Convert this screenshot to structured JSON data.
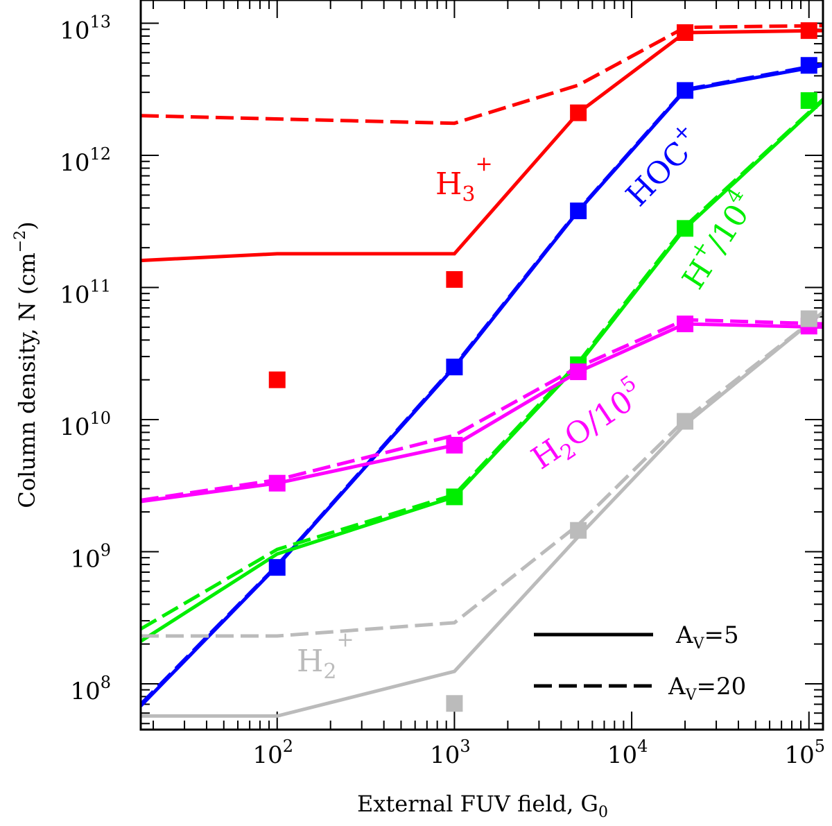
{
  "chart_data": {
    "type": "line",
    "xscale": "log",
    "yscale": "log",
    "xlabel": "External FUV field, G",
    "xlabel_sub": "0",
    "ylabel": "Column density, N (cm",
    "ylabel_sup": "−2",
    "ylabel_end": ")",
    "xlim": [
      17,
      120000
    ],
    "ylim": [
      45000000,
      15000000000000
    ],
    "x_ticks": [
      {
        "value": 100,
        "base": "10",
        "exp": "2"
      },
      {
        "value": 1000,
        "base": "10",
        "exp": "3"
      },
      {
        "value": 10000,
        "base": "10",
        "exp": "4"
      },
      {
        "value": 100000,
        "base": "10",
        "exp": "5"
      }
    ],
    "y_ticks": [
      {
        "value": 100000000,
        "base": "10",
        "exp": "8"
      },
      {
        "value": 1000000000,
        "base": "10",
        "exp": "9"
      },
      {
        "value": 10000000000,
        "base": "10",
        "exp": "10"
      },
      {
        "value": 100000000000,
        "base": "10",
        "exp": "11"
      },
      {
        "value": 1000000000000,
        "base": "10",
        "exp": "12"
      },
      {
        "value": 10000000000000,
        "base": "10",
        "exp": "13"
      }
    ],
    "series": [
      {
        "key": "h3p",
        "color": "#ff0000",
        "solid": {
          "x": [
            17,
            100,
            1000,
            5000,
            20000,
            120000
          ],
          "y": [
            160000000000,
            180000000000,
            180000000000,
            2100000000000,
            8500000000000,
            8800000000000
          ]
        },
        "dashed": {
          "x": [
            17,
            1000,
            5000,
            20000,
            120000
          ],
          "y": [
            2000000000000,
            1750000000000,
            3400000000000,
            9300000000000,
            9600000000000
          ]
        },
        "markers": {
          "x": [
            100,
            1000,
            5000,
            20000,
            100000
          ],
          "y": [
            20000000000,
            115000000000,
            2100000000000,
            8500000000000,
            8800000000000
          ]
        }
      },
      {
        "key": "hocp",
        "color": "#0000ff",
        "solid": {
          "x": [
            17,
            100,
            1000,
            5000,
            20000,
            120000
          ],
          "y": [
            68000000,
            780000000,
            25000000000,
            380000000000,
            3100000000000,
            4800000000000
          ]
        },
        "dashed": {
          "x": [
            17,
            100,
            1000,
            5000,
            20000,
            120000
          ],
          "y": [
            70000000,
            790000000,
            25500000000,
            385000000000,
            3150000000000,
            4900000000000
          ]
        },
        "markers": {
          "x": [
            100,
            1000,
            5000,
            20000,
            100000
          ],
          "y": [
            760000000,
            25000000000,
            380000000000,
            3100000000000,
            4800000000000
          ]
        }
      },
      {
        "key": "hp",
        "color": "#00ee00",
        "solid": {
          "x": [
            17,
            100,
            1000,
            5000,
            20000,
            120000
          ],
          "y": [
            210000000,
            960000000,
            2600000000,
            26000000000,
            280000000000,
            2600000000000
          ]
        },
        "dashed": {
          "x": [
            17,
            100,
            1000,
            5000,
            20000,
            120000
          ],
          "y": [
            260000000,
            1040000000,
            2700000000,
            27000000000,
            290000000000,
            2650000000000
          ]
        },
        "markers": {
          "x": [
            1000,
            5000,
            20000,
            100000
          ],
          "y": [
            2600000000,
            26000000000,
            280000000000,
            2600000000000
          ]
        }
      },
      {
        "key": "h2o",
        "color": "#ff00ff",
        "solid": {
          "x": [
            17,
            100,
            1000,
            5000,
            20000,
            120000
          ],
          "y": [
            2400000000,
            3300000000,
            6400000000,
            23000000000,
            53000000000,
            50000000000
          ]
        },
        "dashed": {
          "x": [
            17,
            100,
            1000,
            5000,
            20000,
            120000
          ],
          "y": [
            2450000000,
            3500000000,
            7600000000,
            25000000000,
            57000000000,
            53000000000
          ]
        },
        "markers": {
          "x": [
            100,
            1000,
            5000,
            20000,
            100000
          ],
          "y": [
            3300000000,
            6400000000,
            23000000000,
            53000000000,
            51000000000
          ]
        }
      },
      {
        "key": "h2p",
        "color": "#bbbbbb",
        "solid": {
          "x": [
            17,
            100,
            1000,
            5000,
            20000,
            120000
          ],
          "y": [
            57000000,
            57000000,
            124000000,
            1300000000,
            9200000000,
            65000000000
          ]
        },
        "dashed": {
          "x": [
            17,
            100,
            1000,
            5000,
            20000,
            120000
          ],
          "y": [
            230000000,
            230000000,
            290000000,
            1600000000,
            10000000000,
            65000000000
          ]
        },
        "markers": {
          "x": [
            1000,
            5000,
            20000,
            100000
          ],
          "y": [
            71000000,
            1450000000,
            9700000000,
            58000000000
          ]
        }
      }
    ],
    "labels": {
      "h3p": {
        "base": "H",
        "sub": "3",
        "sup": "+",
        "color": "#ff0000"
      },
      "hocp": {
        "text": "HOC",
        "sup": "+",
        "color": "#0000ff"
      },
      "hp": {
        "text": "H",
        "sup": "+",
        "rest": "/10",
        "sup2": "4",
        "color": "#00ee00"
      },
      "h2o": {
        "text": "H",
        "sub": "2",
        "rest": "O/10",
        "sup": "5",
        "color": "#ff00ff"
      },
      "h2p": {
        "text": "H",
        "sub": "2",
        "sup": "+",
        "color": "#bbbbbb"
      }
    },
    "legend": {
      "position": "bottom-right",
      "entries": [
        {
          "style": "solid",
          "label": "A",
          "sub": "V",
          "rest": "=5"
        },
        {
          "style": "dashed",
          "label": "A",
          "sub": "V",
          "rest": "=20"
        }
      ]
    }
  }
}
